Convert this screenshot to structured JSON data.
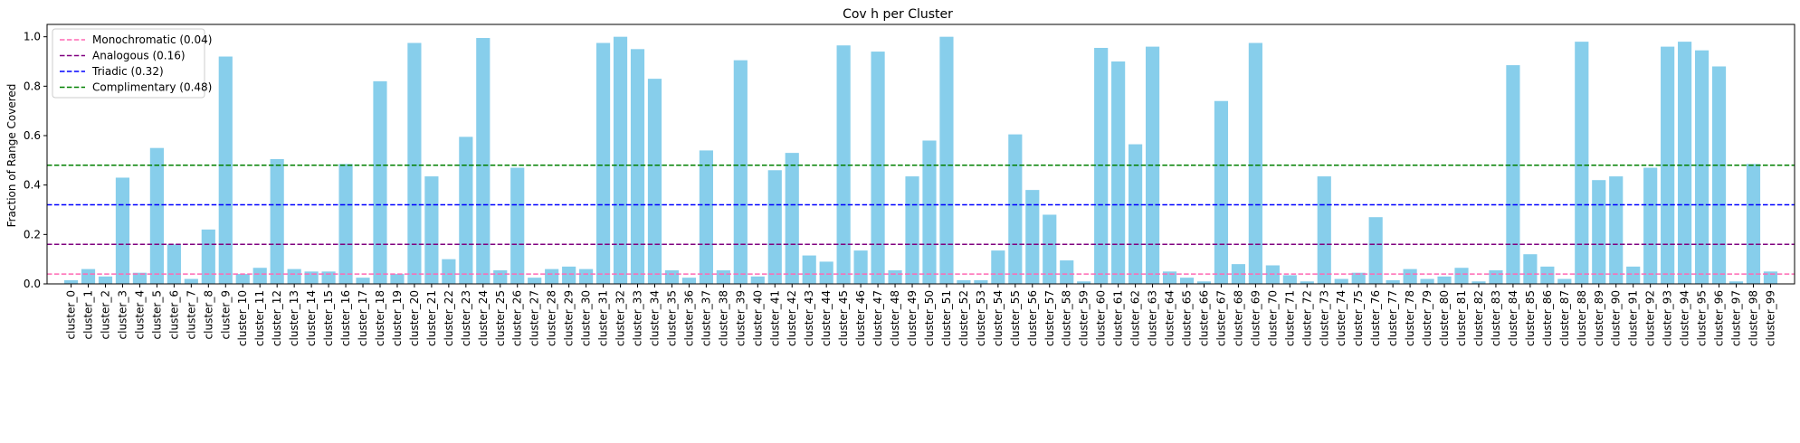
{
  "chart_data": {
    "type": "bar",
    "title": "Cov h per Cluster",
    "xlabel": "",
    "ylabel": "Fraction of Range Covered",
    "ylim": [
      0,
      1.05
    ],
    "yticks": [
      0.0,
      0.2,
      0.4,
      0.6,
      0.8,
      1.0
    ],
    "ytick_labels": [
      "0.0",
      "0.2",
      "0.4",
      "0.6",
      "0.8",
      "1.0"
    ],
    "grid": false,
    "legend_position": "top-left",
    "bar_color": "#87CEEB",
    "categories": [
      "cluster_0",
      "cluster_1",
      "cluster_2",
      "cluster_3",
      "cluster_4",
      "cluster_5",
      "cluster_6",
      "cluster_7",
      "cluster_8",
      "cluster_9",
      "cluster_10",
      "cluster_11",
      "cluster_12",
      "cluster_13",
      "cluster_14",
      "cluster_15",
      "cluster_16",
      "cluster_17",
      "cluster_18",
      "cluster_19",
      "cluster_20",
      "cluster_21",
      "cluster_22",
      "cluster_23",
      "cluster_24",
      "cluster_25",
      "cluster_26",
      "cluster_27",
      "cluster_28",
      "cluster_29",
      "cluster_30",
      "cluster_31",
      "cluster_32",
      "cluster_33",
      "cluster_34",
      "cluster_35",
      "cluster_36",
      "cluster_37",
      "cluster_38",
      "cluster_39",
      "cluster_40",
      "cluster_41",
      "cluster_42",
      "cluster_43",
      "cluster_44",
      "cluster_45",
      "cluster_46",
      "cluster_47",
      "cluster_48",
      "cluster_49",
      "cluster_50",
      "cluster_51",
      "cluster_52",
      "cluster_53",
      "cluster_54",
      "cluster_55",
      "cluster_56",
      "cluster_57",
      "cluster_58",
      "cluster_59",
      "cluster_60",
      "cluster_61",
      "cluster_62",
      "cluster_63",
      "cluster_64",
      "cluster_65",
      "cluster_66",
      "cluster_67",
      "cluster_68",
      "cluster_69",
      "cluster_70",
      "cluster_71",
      "cluster_72",
      "cluster_73",
      "cluster_74",
      "cluster_75",
      "cluster_76",
      "cluster_77",
      "cluster_78",
      "cluster_79",
      "cluster_80",
      "cluster_81",
      "cluster_82",
      "cluster_83",
      "cluster_84",
      "cluster_85",
      "cluster_86",
      "cluster_87",
      "cluster_88",
      "cluster_89",
      "cluster_90",
      "cluster_91",
      "cluster_92",
      "cluster_93",
      "cluster_94",
      "cluster_95",
      "cluster_96",
      "cluster_97",
      "cluster_98",
      "cluster_99"
    ],
    "values": [
      0.015,
      0.06,
      0.03,
      0.43,
      0.045,
      0.55,
      0.16,
      0.02,
      0.22,
      0.92,
      0.04,
      0.065,
      0.505,
      0.06,
      0.05,
      0.05,
      0.485,
      0.025,
      0.82,
      0.04,
      0.975,
      0.435,
      0.1,
      0.595,
      0.995,
      0.055,
      0.47,
      0.025,
      0.06,
      0.07,
      0.06,
      0.975,
      1.0,
      0.95,
      0.83,
      0.055,
      0.025,
      0.54,
      0.055,
      0.905,
      0.03,
      0.46,
      0.53,
      0.115,
      0.09,
      0.965,
      0.135,
      0.94,
      0.055,
      0.435,
      0.58,
      1.0,
      0.015,
      0.015,
      0.135,
      0.605,
      0.38,
      0.28,
      0.095,
      0.01,
      0.955,
      0.9,
      0.565,
      0.96,
      0.05,
      0.025,
      0.01,
      0.74,
      0.08,
      0.975,
      0.075,
      0.035,
      0.01,
      0.435,
      0.02,
      0.045,
      0.27,
      0.015,
      0.06,
      0.02,
      0.03,
      0.065,
      0.01,
      0.055,
      0.885,
      0.12,
      0.07,
      0.02,
      0.98,
      0.42,
      0.435,
      0.07,
      0.47,
      0.96,
      0.98,
      0.945,
      0.88,
      0.01,
      0.485,
      0.05
    ],
    "reference_lines": [
      {
        "name": "Monochromatic (0.04)",
        "value": 0.04,
        "color": "#FF69B4"
      },
      {
        "name": "Analogous (0.16)",
        "value": 0.16,
        "color": "#800080"
      },
      {
        "name": "Triadic (0.32)",
        "value": 0.32,
        "color": "#0000FF"
      },
      {
        "name": "Complimentary (0.48)",
        "value": 0.48,
        "color": "#008000"
      }
    ]
  }
}
